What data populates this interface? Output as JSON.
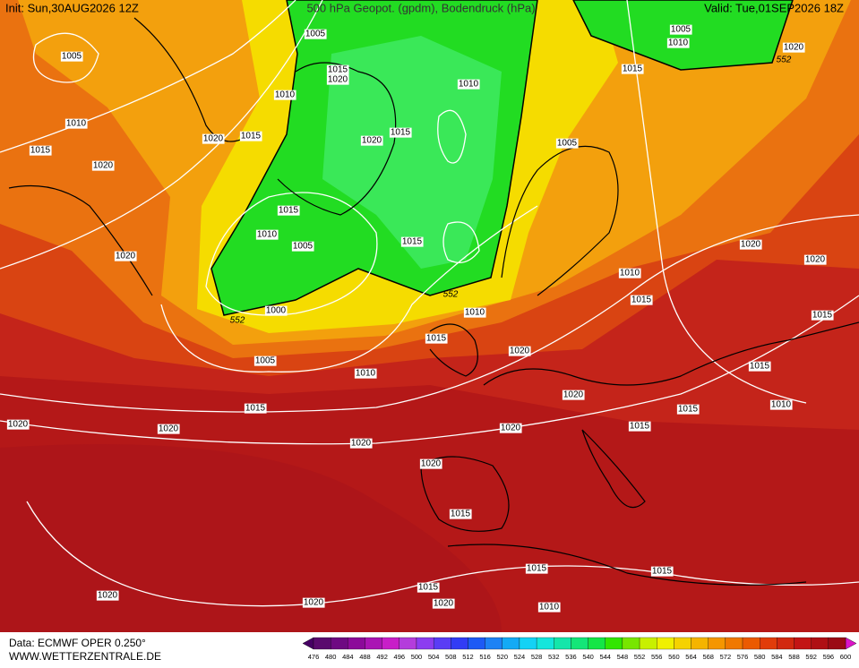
{
  "header": {
    "init": "Init: Sun,30AUG2026 12Z",
    "title": "500 hPa Geopot. (gpdm), Bodendruck (hPa)",
    "valid": "Valid: Tue,01SEP2026 18Z"
  },
  "footer": {
    "data": "Data: ECMWF OPER 0.250°",
    "website": "WWW.WETTERZENTRALE.DE"
  },
  "isobar_labels": [
    "1005",
    "1005",
    "1015",
    "1020",
    "1010",
    "1010",
    "1020",
    "1015",
    "1015",
    "1020",
    "1020",
    "1015",
    "1010",
    "1015",
    "1010",
    "1005",
    "1015",
    "1020",
    "1000",
    "1005",
    "1010",
    "1015",
    "1010",
    "1015",
    "1020",
    "1020",
    "1020",
    "1020",
    "1020",
    "1020",
    "1020",
    "1015",
    "1015",
    "1015",
    "1015",
    "1020",
    "1010",
    "1020",
    "1020",
    "1005",
    "1015",
    "1005",
    "1010",
    "1020",
    "1020",
    "1020",
    "1010",
    "1015",
    "1015",
    "1015",
    "1015",
    "1010",
    "1015"
  ],
  "contour_labels": [
    "552",
    "552",
    "552"
  ],
  "colorbar": {
    "labels": [
      476,
      480,
      484,
      488,
      492,
      496,
      500,
      504,
      508,
      512,
      516,
      520,
      524,
      528,
      532,
      536,
      540,
      544,
      548,
      552,
      556,
      560,
      564,
      568,
      572,
      576,
      580,
      584,
      588,
      592,
      596,
      600
    ],
    "colors": [
      "#5a0a6e",
      "#6e0a82",
      "#8c0a9a",
      "#aa14b4",
      "#c81ec8",
      "#b43cdc",
      "#8c3cf0",
      "#5a3cf5",
      "#323cf5",
      "#1e5af5",
      "#1e82f5",
      "#14aaf5",
      "#14d2f5",
      "#14e6dc",
      "#14e6aa",
      "#14e678",
      "#14e646",
      "#32e600",
      "#78e600",
      "#c8f000",
      "#f0f000",
      "#f5d200",
      "#f5b400",
      "#f59600",
      "#f07800",
      "#eb5a00",
      "#e13c0a",
      "#d2280f",
      "#c31414",
      "#af0f14",
      "#9b0a14"
    ],
    "under_color": "#460064",
    "over_color": "#dc14c8"
  }
}
